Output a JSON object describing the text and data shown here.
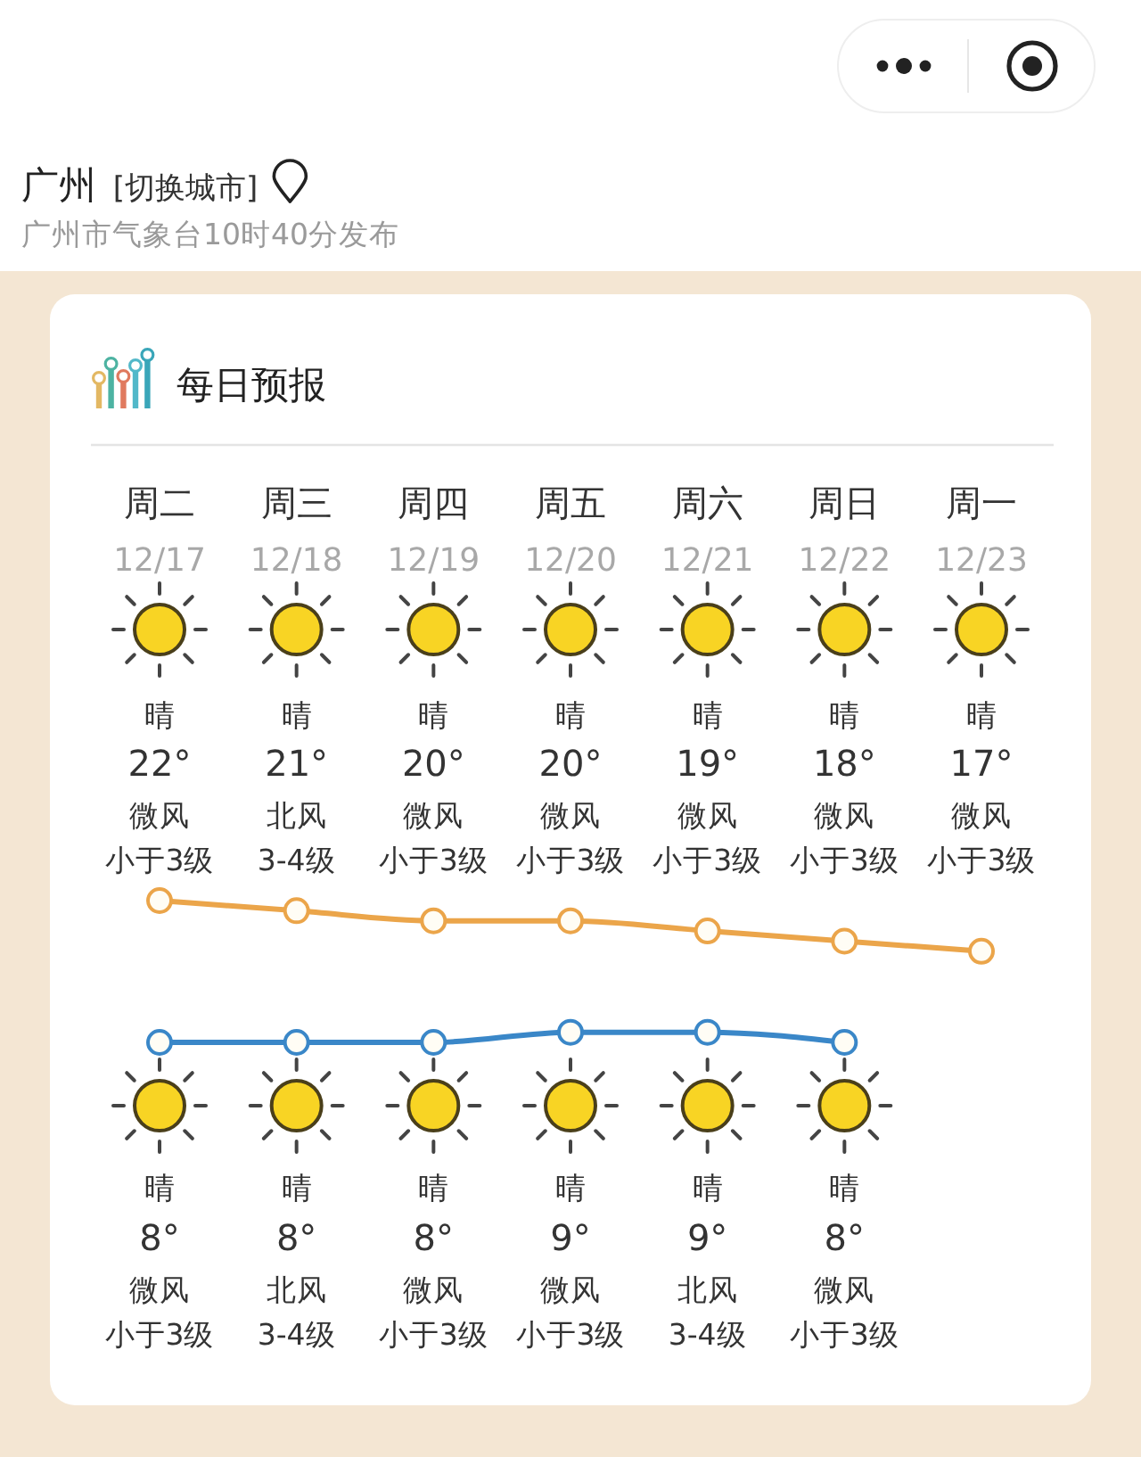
{
  "chart_data": {
    "type": "line",
    "title": "每日预报",
    "categories": [
      "周二 12/17",
      "周三 12/18",
      "周四 12/19",
      "周五 12/20",
      "周六 12/21",
      "周日 12/22",
      "周一 12/23"
    ],
    "series": [
      {
        "color": "#eba54a",
        "values": [
          22,
          21,
          20,
          20,
          19,
          18,
          17
        ],
        "value_labels": [
          "22°",
          "21°",
          "20°",
          "20°",
          "19°",
          "18°",
          "17°"
        ]
      },
      {
        "color": "#3a87c8",
        "values": [
          8,
          8,
          8,
          9,
          9,
          8,
          null
        ],
        "value_labels": [
          "8°",
          "8°",
          "8°",
          "9°",
          "9°",
          "8°",
          null
        ]
      }
    ],
    "marker": "circle",
    "line_style": "solid",
    "annotations": [
      "广州 [切换城市]",
      "广州市气象台10时40分发布",
      "晴",
      "微风",
      "小于3级",
      "晴",
      "北风",
      "3-4级",
      "晴",
      "微风",
      "小于3级",
      "晴",
      "微风",
      "小于3级",
      "晴",
      "微风",
      "小于3级",
      "晴",
      "微风",
      "小于3级",
      "晴",
      "微风",
      "小于3级",
      "晴",
      "微风",
      "小于3级",
      "晴",
      "北风",
      "3-4级",
      "晴",
      "微风",
      "小于3级",
      "晴",
      "微风",
      "小于3级",
      "晴",
      "北风",
      "3-4级",
      "晴",
      "微风",
      "小于3级"
    ]
  }
}
